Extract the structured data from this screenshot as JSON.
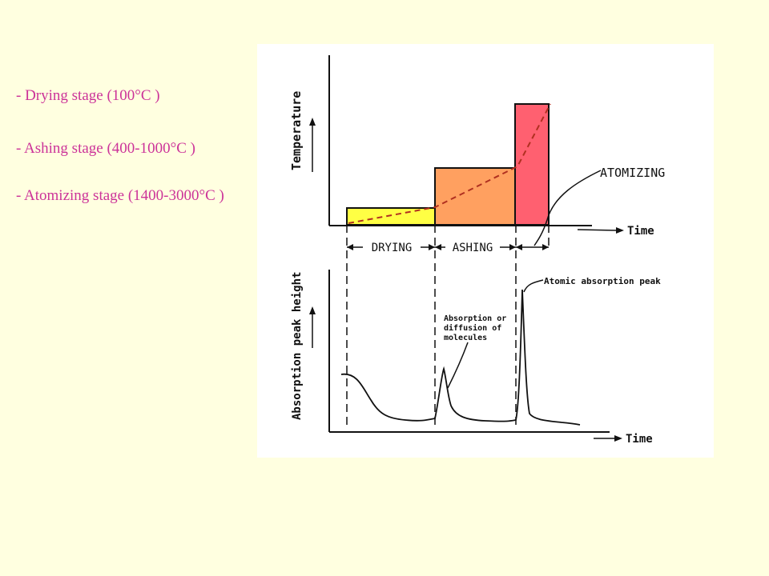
{
  "slide": {
    "bullets": [
      "- Drying stage (100°C )",
      "- Ashing stage (400-1000°C )",
      "- Atomizing stage (1400-3000°C )"
    ]
  },
  "diagram": {
    "temperature_label": "Temperature",
    "absorption_label": "Absorption peak height",
    "time_label_top": "Time",
    "time_label_bottom": "Time",
    "stage_drying": "DRYING",
    "stage_ashing": "ASHING",
    "stage_atomizing": "ATOMIZING",
    "annotation_molecules": [
      "Absorption or",
      "diffusion of",
      "molecules"
    ],
    "annotation_atomic": "Atomic absorption peak",
    "colors": {
      "drying": "#ffff44",
      "ashing": "#ffa060",
      "atomizing": "#ff6070",
      "dashed_ramp": "#b03020",
      "ink": "#111111"
    }
  }
}
